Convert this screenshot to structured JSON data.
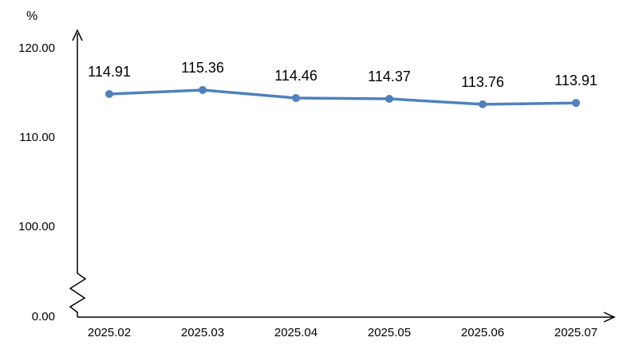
{
  "chart_data": {
    "type": "line",
    "ylabel": "%",
    "categories": [
      "2025.02",
      "2025.03",
      "2025.04",
      "2025.05",
      "2025.06",
      "2025.07"
    ],
    "series": [
      {
        "values": [
          114.91,
          115.36,
          114.46,
          114.37,
          113.76,
          113.91
        ]
      }
    ],
    "data_labels": [
      "114.91",
      "115.36",
      "114.46",
      "114.37",
      "113.76",
      "113.91"
    ],
    "y_ticks": [
      {
        "value": 0,
        "label": "0.00"
      },
      {
        "value": 100,
        "label": "100.00"
      },
      {
        "value": 110,
        "label": "110.00"
      },
      {
        "value": 120,
        "label": "120.00"
      }
    ],
    "axis_break": true,
    "grid": false,
    "line_color": "#4F81BD"
  }
}
